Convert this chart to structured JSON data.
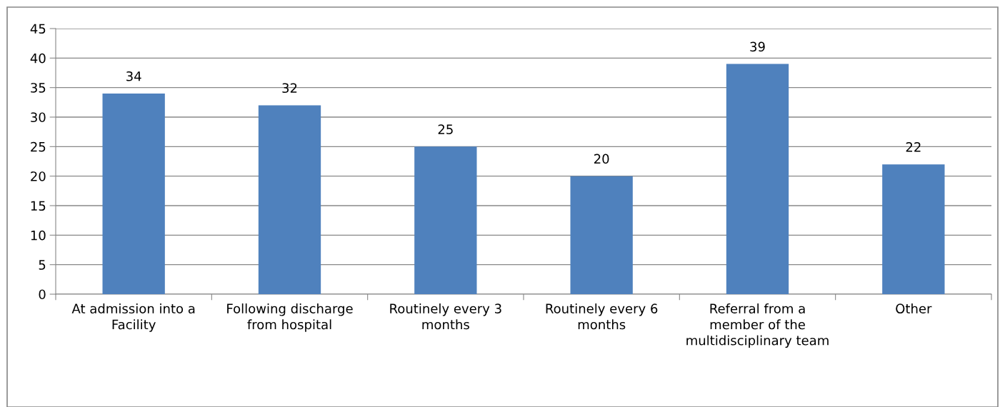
{
  "chart_data": {
    "type": "bar",
    "categories": [
      "At admission into a Facility",
      "Following discharge from hospital",
      "Routinely every 3 months",
      "Routinely every 6 months",
      "Referral from a member of the multidisciplinary team",
      "Other"
    ],
    "values": [
      34,
      32,
      25,
      20,
      39,
      22
    ],
    "color": "#4f81bd",
    "ylim": [
      0,
      45
    ],
    "yticks": [
      0,
      5,
      10,
      15,
      20,
      25,
      30,
      35,
      40,
      45
    ],
    "grid": "y",
    "data_labels": true
  }
}
